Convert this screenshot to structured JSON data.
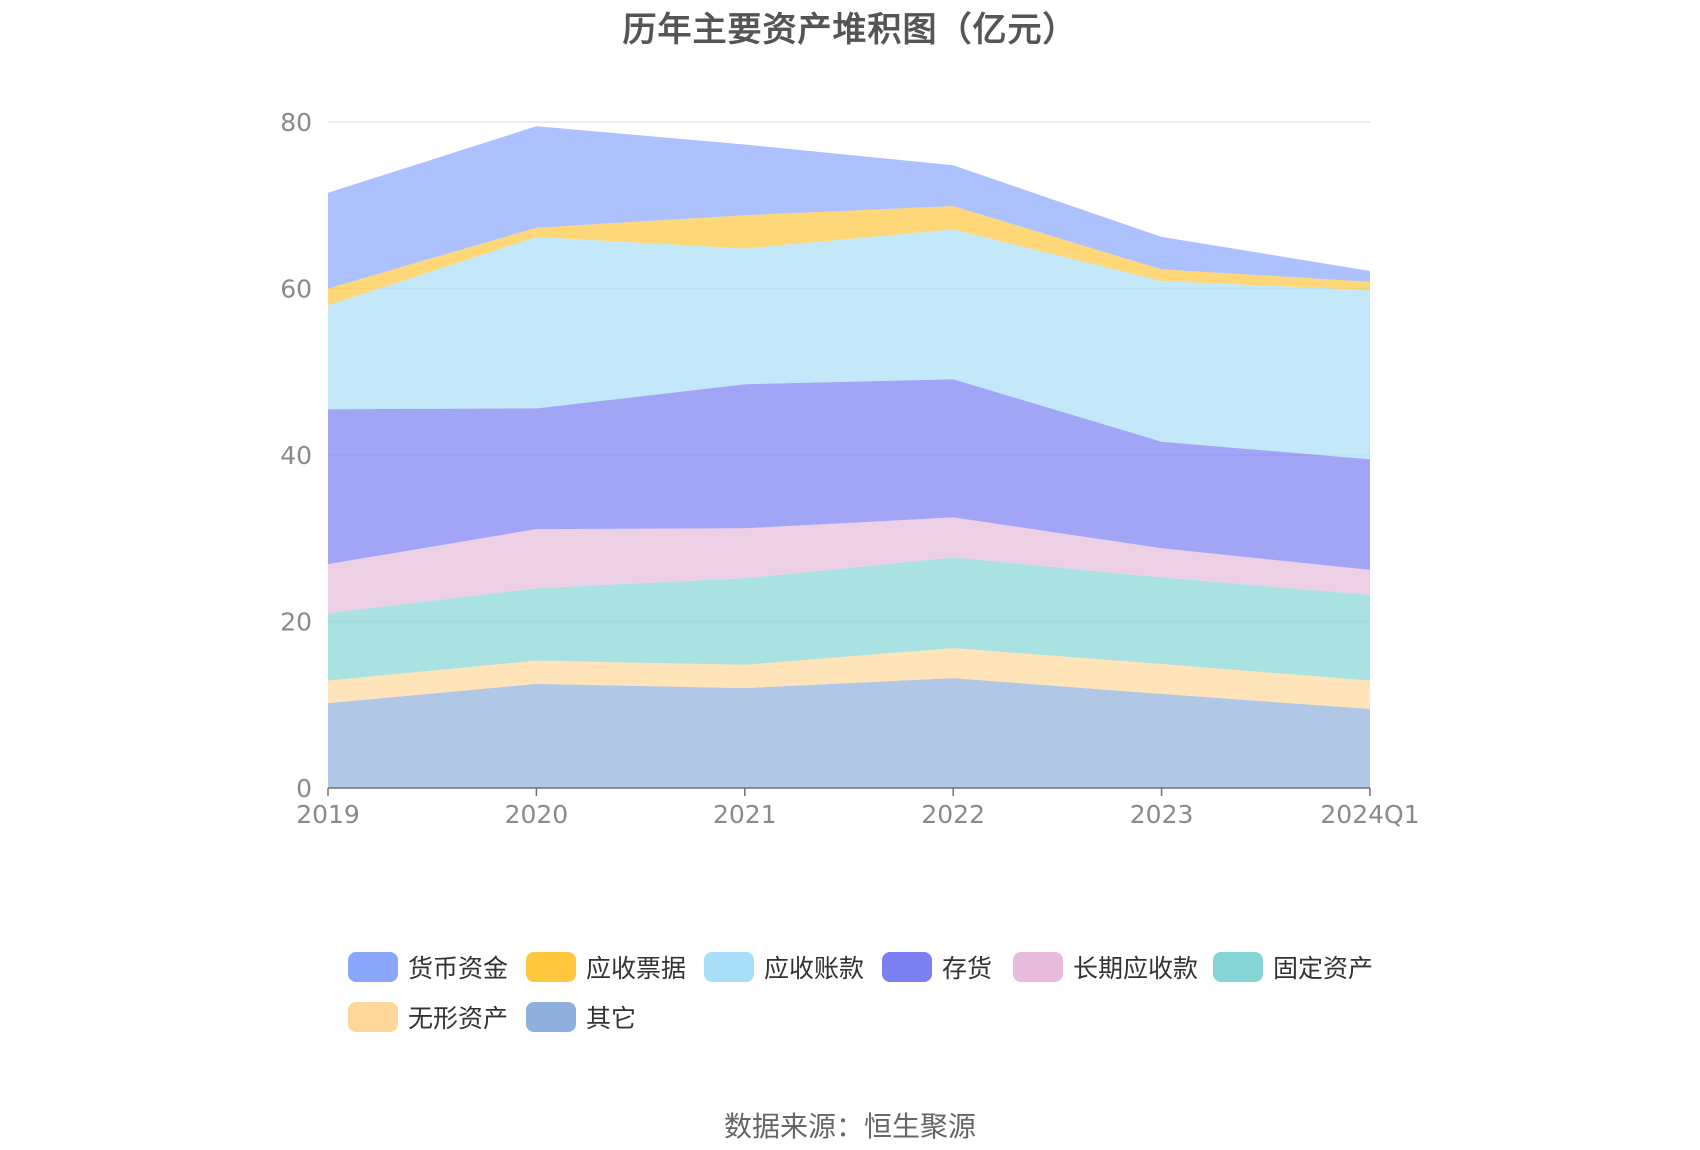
{
  "chart_data": {
    "type": "area",
    "stacked": true,
    "title": "历年主要资产堆积图（亿元）",
    "categories": [
      "2019",
      "2020",
      "2021",
      "2022",
      "2023",
      "2024Q1"
    ],
    "ylim": [
      0,
      80
    ],
    "yticks": [
      0,
      20,
      40,
      60,
      80
    ],
    "grid": true,
    "legend_position": "bottom",
    "series": [
      {
        "name": "其它",
        "color": "#8fafdc",
        "values": [
          10.2,
          12.5,
          12.0,
          13.2,
          11.3,
          9.5
        ]
      },
      {
        "name": "无形资产",
        "color": "#fdd89a",
        "values": [
          2.7,
          2.8,
          2.8,
          3.6,
          3.6,
          3.4
        ]
      },
      {
        "name": "固定资产",
        "color": "#86d5d6",
        "values": [
          8.1,
          8.7,
          10.4,
          10.9,
          10.4,
          10.3
        ]
      },
      {
        "name": "长期应收款",
        "color": "#e6bcda",
        "values": [
          5.9,
          7.1,
          6.0,
          4.8,
          3.5,
          3.0
        ]
      },
      {
        "name": "存货",
        "color": "#7b7ff2",
        "values": [
          18.6,
          14.5,
          17.3,
          16.6,
          12.8,
          13.3
        ]
      },
      {
        "name": "应收账款",
        "color": "#a8def8",
        "values": [
          12.5,
          20.6,
          16.3,
          18.0,
          19.3,
          20.3
        ]
      },
      {
        "name": "应收票据",
        "color": "#fec73e",
        "values": [
          2.0,
          1.1,
          4.0,
          2.8,
          1.4,
          1.0
        ]
      },
      {
        "name": "货币资金",
        "color": "#8aa6fd",
        "values": [
          11.5,
          12.2,
          8.5,
          4.9,
          3.9,
          1.3
        ]
      }
    ],
    "legend_order": [
      "货币资金",
      "应收票据",
      "应收账款",
      "存货",
      "长期应收款",
      "固定资产",
      "无形资产",
      "其它"
    ]
  },
  "source": "数据来源：恒生聚源"
}
